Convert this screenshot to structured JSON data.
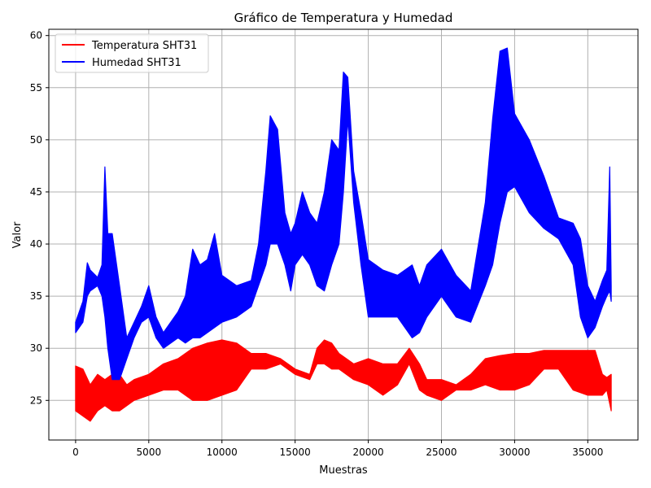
{
  "chart_data": {
    "type": "line",
    "title": "Gráfico de Temperatura y Humedad",
    "xlabel": "Muestras",
    "ylabel": "Valor",
    "xlim": [
      -1830,
      38430
    ],
    "ylim": [
      21.2,
      60.6
    ],
    "xticks": [
      0,
      5000,
      10000,
      15000,
      20000,
      25000,
      30000,
      35000
    ],
    "yticks": [
      25,
      30,
      35,
      40,
      45,
      50,
      55,
      60
    ],
    "grid": true,
    "legend_position": "top-left",
    "series": [
      {
        "name": "Temperatura SHT31",
        "color": "#ff0000",
        "x": [
          0,
          500,
          1000,
          1500,
          2000,
          2500,
          3000,
          3500,
          4000,
          5000,
          6000,
          7000,
          8000,
          9000,
          10000,
          11000,
          12000,
          13000,
          14000,
          15000,
          16000,
          16500,
          17000,
          17500,
          18000,
          19000,
          20000,
          21000,
          22000,
          22800,
          23500,
          24000,
          25000,
          26000,
          27000,
          28000,
          29000,
          30000,
          31000,
          32000,
          33000,
          34000,
          35000,
          35500,
          36000,
          36300,
          36600
        ],
        "min": [
          24.0,
          23.5,
          23.0,
          24.0,
          24.5,
          24.0,
          24.0,
          24.5,
          25.0,
          25.5,
          26.0,
          26.0,
          25.0,
          25.0,
          25.5,
          26.0,
          28.0,
          28.0,
          28.5,
          27.5,
          27.0,
          28.5,
          28.5,
          28.0,
          28.0,
          27.0,
          26.5,
          25.5,
          26.5,
          28.5,
          26.0,
          25.5,
          25.0,
          26.0,
          26.0,
          26.5,
          26.0,
          26.0,
          26.5,
          28.0,
          28.0,
          26.0,
          25.5,
          25.5,
          25.5,
          26.0,
          24.0
        ],
        "max": [
          28.3,
          28.0,
          26.5,
          27.5,
          27.0,
          27.5,
          27.5,
          26.5,
          27.0,
          27.5,
          28.5,
          29.0,
          30.0,
          30.5,
          30.8,
          30.5,
          29.5,
          29.5,
          29.0,
          28.0,
          27.5,
          30.0,
          30.8,
          30.5,
          29.5,
          28.5,
          29.0,
          28.5,
          28.5,
          30.0,
          28.5,
          27.0,
          27.0,
          26.5,
          27.5,
          29.0,
          29.3,
          29.5,
          29.5,
          29.8,
          29.8,
          29.8,
          29.8,
          29.8,
          27.5,
          27.2,
          27.5
        ]
      },
      {
        "name": "Humedad SHT31",
        "color": "#0000ff",
        "x": [
          0,
          500,
          800,
          1000,
          1500,
          1800,
          2000,
          2200,
          2500,
          3000,
          3500,
          4000,
          4500,
          5000,
          5500,
          6000,
          7000,
          7500,
          8000,
          8500,
          9000,
          9500,
          10000,
          11000,
          12000,
          12500,
          13000,
          13300,
          13800,
          14300,
          14700,
          15000,
          15500,
          16000,
          16500,
          17000,
          17500,
          18000,
          18300,
          18600,
          19000,
          19500,
          20000,
          21000,
          22000,
          23000,
          23500,
          24000,
          25000,
          26000,
          27000,
          28000,
          28500,
          29000,
          29500,
          30000,
          31000,
          32000,
          33000,
          34000,
          34500,
          35000,
          35500,
          36000,
          36300,
          36500,
          36600
        ],
        "min": [
          31.5,
          32.5,
          35.0,
          35.5,
          36.0,
          35.0,
          33.0,
          30.0,
          27.0,
          27.0,
          29.0,
          31.0,
          32.5,
          33.0,
          31.0,
          30.0,
          31.0,
          30.5,
          31.0,
          31.0,
          31.5,
          32.0,
          32.5,
          33.0,
          34.0,
          36.0,
          38.0,
          40.0,
          40.0,
          38.0,
          35.5,
          38.0,
          39.0,
          38.0,
          36.0,
          35.5,
          38.0,
          40.0,
          45.0,
          52.0,
          44.0,
          38.0,
          33.0,
          33.0,
          33.0,
          31.0,
          31.5,
          33.0,
          35.0,
          33.0,
          32.5,
          36.0,
          38.0,
          42.0,
          45.0,
          45.5,
          43.0,
          41.5,
          40.5,
          38.0,
          33.0,
          31.0,
          32.0,
          34.0,
          35.0,
          35.5,
          34.5
        ],
        "max": [
          32.5,
          34.5,
          38.2,
          37.5,
          36.8,
          38.0,
          47.4,
          41.0,
          41.0,
          36.0,
          31.0,
          32.5,
          34.0,
          36.0,
          33.0,
          31.5,
          33.5,
          35.0,
          39.5,
          38.0,
          38.5,
          41.0,
          37.0,
          36.0,
          36.5,
          40.0,
          47.0,
          52.3,
          51.0,
          43.0,
          41.0,
          42.0,
          45.0,
          43.0,
          42.0,
          45.0,
          50.0,
          49.0,
          56.5,
          56.0,
          47.0,
          43.0,
          38.5,
          37.5,
          37.0,
          38.0,
          36.0,
          38.0,
          39.5,
          37.0,
          35.5,
          44.0,
          52.0,
          58.5,
          58.8,
          52.5,
          50.0,
          46.5,
          42.5,
          42.0,
          40.5,
          36.0,
          34.5,
          36.5,
          37.5,
          47.4,
          36.0
        ]
      }
    ]
  }
}
